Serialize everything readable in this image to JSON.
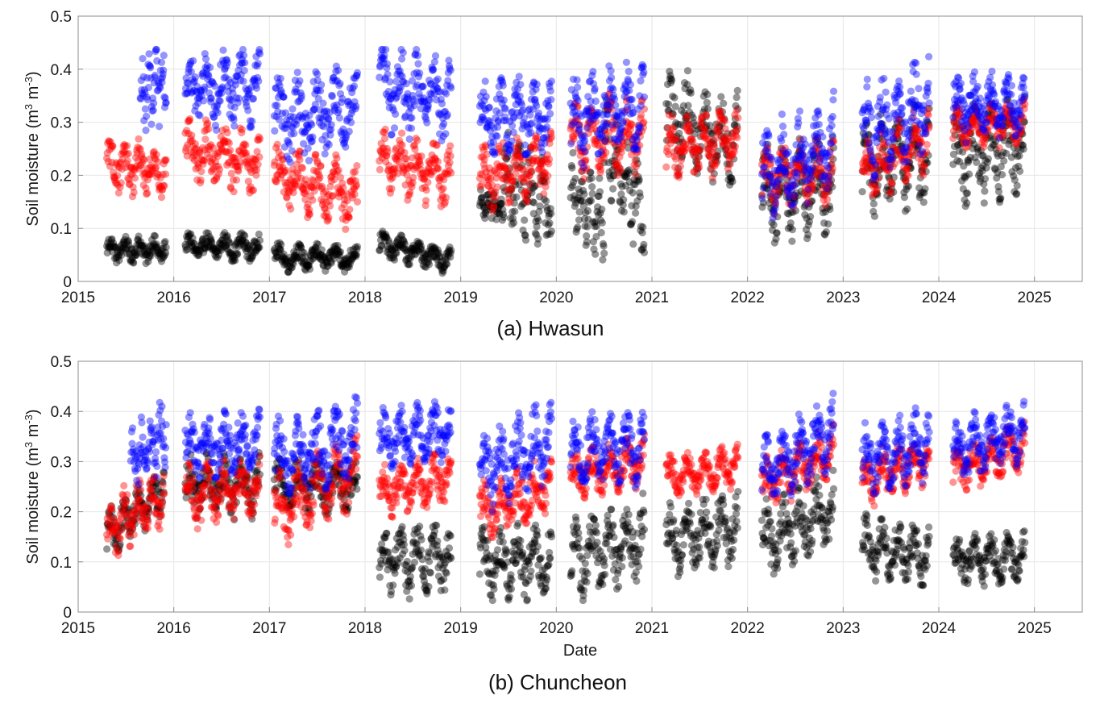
{
  "colors": {
    "black": "#000000",
    "red": "#ff0000",
    "blue": "#0000ff"
  },
  "chart_data": [
    {
      "type": "scatter",
      "caption": "(a) Hwasun",
      "ylabel_main": "Soil moisture (m",
      "ylabel_exp1": "3",
      "ylabel_mid": " m",
      "ylabel_exp2": "-3",
      "ylabel_end": ")",
      "xlabel": "",
      "xlim": [
        2015.0,
        2025.5
      ],
      "ylim": [
        0,
        0.5
      ],
      "xticks": [
        "2015",
        "2016",
        "2017",
        "2018",
        "2019",
        "2020",
        "2021",
        "2022",
        "2023",
        "2024",
        "2025"
      ],
      "yticks": [
        "0",
        "0.1",
        "0.2",
        "0.3",
        "0.4",
        "0.5"
      ],
      "grid": true,
      "series": [
        {
          "name": "black",
          "color": "#000000",
          "segments": [
            [
              2015.3,
              2015.92,
              0.06,
              0.06,
              0.025
            ],
            [
              2016.12,
              2016.9,
              0.065,
              0.065,
              0.025
            ],
            [
              2017.05,
              2017.92,
              0.045,
              0.045,
              0.025
            ],
            [
              2018.15,
              2018.9,
              0.07,
              0.04,
              0.025
            ],
            [
              2019.2,
              2019.45,
              0.15,
              0.13,
              0.025
            ],
            [
              2019.45,
              2019.95,
              0.2,
              0.14,
              0.09
            ],
            [
              2020.15,
              2020.5,
              0.17,
              0.11,
              0.07
            ],
            [
              2020.5,
              2020.92,
              0.26,
              0.13,
              0.09
            ],
            [
              2021.15,
              2021.9,
              0.31,
              0.26,
              0.09
            ],
            [
              2022.15,
              2022.9,
              0.17,
              0.18,
              0.09
            ],
            [
              2023.2,
              2023.9,
              0.22,
              0.24,
              0.09
            ],
            [
              2024.15,
              2024.9,
              0.23,
              0.26,
              0.09
            ]
          ]
        },
        {
          "name": "red",
          "color": "#ff0000",
          "segments": [
            [
              2015.3,
              2015.92,
              0.22,
              0.21,
              0.05
            ],
            [
              2016.12,
              2016.9,
              0.25,
              0.22,
              0.06
            ],
            [
              2017.05,
              2017.92,
              0.2,
              0.16,
              0.06
            ],
            [
              2018.15,
              2018.9,
              0.23,
              0.2,
              0.06
            ],
            [
              2019.2,
              2019.95,
              0.19,
              0.23,
              0.06
            ],
            [
              2020.15,
              2020.92,
              0.27,
              0.28,
              0.07
            ],
            [
              2021.15,
              2021.9,
              0.25,
              0.27,
              0.06
            ],
            [
              2022.15,
              2022.9,
              0.19,
              0.21,
              0.06
            ],
            [
              2023.2,
              2023.9,
              0.21,
              0.27,
              0.06
            ],
            [
              2024.15,
              2024.9,
              0.29,
              0.3,
              0.04
            ]
          ]
        },
        {
          "name": "blue",
          "color": "#0000ff",
          "segments": [
            [
              2015.65,
              2015.92,
              0.35,
              0.38,
              0.07
            ],
            [
              2016.12,
              2016.9,
              0.36,
              0.37,
              0.07
            ],
            [
              2017.05,
              2017.92,
              0.3,
              0.33,
              0.08
            ],
            [
              2018.15,
              2018.9,
              0.37,
              0.34,
              0.08
            ],
            [
              2019.2,
              2019.95,
              0.3,
              0.32,
              0.07
            ],
            [
              2020.15,
              2020.92,
              0.3,
              0.33,
              0.08
            ],
            [
              2022.15,
              2022.9,
              0.2,
              0.26,
              0.09
            ],
            [
              2023.2,
              2023.9,
              0.28,
              0.33,
              0.09
            ],
            [
              2024.15,
              2024.9,
              0.33,
              0.33,
              0.06
            ]
          ]
        }
      ]
    },
    {
      "type": "scatter",
      "caption": "(b) Chuncheon",
      "ylabel_main": "Soil moisture (m",
      "ylabel_exp1": "3",
      "ylabel_mid": " m",
      "ylabel_exp2": "-3",
      "ylabel_end": ")",
      "xlabel": "Date",
      "xlim": [
        2015.0,
        2025.5
      ],
      "ylim": [
        0,
        0.5
      ],
      "xticks": [
        "2015",
        "2016",
        "2017",
        "2018",
        "2019",
        "2020",
        "2021",
        "2022",
        "2023",
        "2024",
        "2025"
      ],
      "yticks": [
        "0",
        "0.1",
        "0.2",
        "0.3",
        "0.4",
        "0.5"
      ],
      "grid": true,
      "series": [
        {
          "name": "black",
          "color": "#000000",
          "segments": [
            [
              2015.3,
              2015.9,
              0.15,
              0.25,
              0.05
            ],
            [
              2016.12,
              2016.9,
              0.25,
              0.25,
              0.06
            ],
            [
              2017.05,
              2017.92,
              0.25,
              0.25,
              0.05
            ],
            [
              2018.15,
              2018.9,
              0.1,
              0.11,
              0.07
            ],
            [
              2019.2,
              2019.95,
              0.1,
              0.1,
              0.07
            ],
            [
              2020.15,
              2020.92,
              0.1,
              0.15,
              0.08
            ],
            [
              2021.15,
              2021.9,
              0.14,
              0.17,
              0.07
            ],
            [
              2022.15,
              2022.9,
              0.14,
              0.2,
              0.08
            ],
            [
              2023.2,
              2023.9,
              0.13,
              0.11,
              0.06
            ],
            [
              2024.15,
              2024.9,
              0.1,
              0.11,
              0.05
            ]
          ]
        },
        {
          "name": "red",
          "color": "#ff0000",
          "segments": [
            [
              2015.3,
              2015.9,
              0.16,
              0.24,
              0.06
            ],
            [
              2016.12,
              2016.9,
              0.23,
              0.25,
              0.06
            ],
            [
              2017.05,
              2017.92,
              0.2,
              0.28,
              0.07
            ],
            [
              2018.15,
              2018.9,
              0.24,
              0.27,
              0.05
            ],
            [
              2019.2,
              2019.95,
              0.2,
              0.25,
              0.06
            ],
            [
              2020.15,
              2020.92,
              0.27,
              0.3,
              0.05
            ],
            [
              2021.15,
              2021.9,
              0.27,
              0.29,
              0.04
            ],
            [
              2022.15,
              2022.9,
              0.25,
              0.32,
              0.05
            ],
            [
              2023.2,
              2023.9,
              0.26,
              0.31,
              0.05
            ],
            [
              2024.15,
              2024.9,
              0.28,
              0.33,
              0.05
            ]
          ]
        },
        {
          "name": "blue",
          "color": "#0000ff",
          "segments": [
            [
              2015.55,
              2015.92,
              0.3,
              0.36,
              0.07
            ],
            [
              2016.12,
              2016.9,
              0.33,
              0.34,
              0.06
            ],
            [
              2017.05,
              2017.92,
              0.3,
              0.34,
              0.08
            ],
            [
              2018.15,
              2018.9,
              0.34,
              0.36,
              0.06
            ],
            [
              2019.2,
              2019.95,
              0.28,
              0.34,
              0.08
            ],
            [
              2020.15,
              2020.92,
              0.32,
              0.33,
              0.07
            ],
            [
              2022.15,
              2022.9,
              0.27,
              0.36,
              0.07
            ],
            [
              2023.2,
              2023.9,
              0.3,
              0.34,
              0.07
            ],
            [
              2024.15,
              2024.9,
              0.32,
              0.36,
              0.06
            ]
          ]
        }
      ]
    }
  ]
}
